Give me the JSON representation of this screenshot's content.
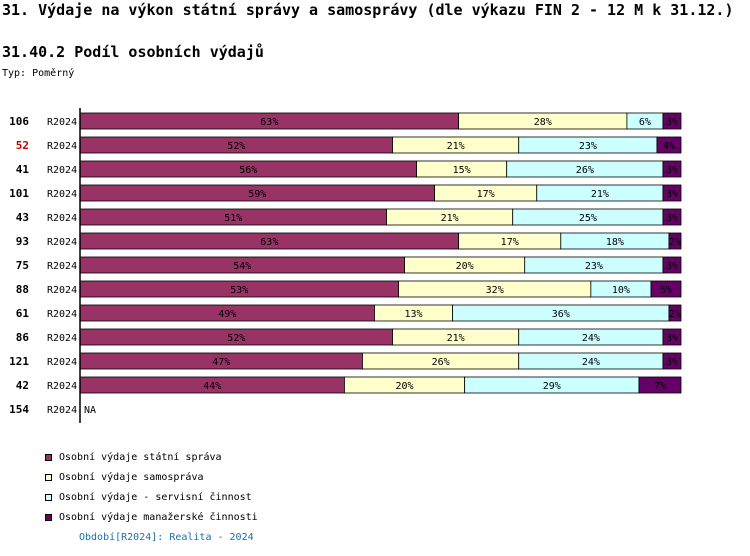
{
  "header": {
    "title": "31. Výdaje na výkon státní správy a samosprávy (dle výkazu FIN 2 - 12 M k 31.12.)",
    "subtitle": "31.40.2 Podíl osobních výdajů",
    "typ_label": "Typ:",
    "typ_value": "Poměrný"
  },
  "footer": {
    "period_label": "Období[R2024]:",
    "period_value": "Realita - 2024"
  },
  "colors": {
    "statni": "#993366",
    "samosprava": "#ffffcc",
    "servisni": "#ccffff",
    "manazerske": "#660066",
    "highlight_id": "#cc0000"
  },
  "chart_data": {
    "type": "bar",
    "orientation": "horizontal",
    "stacked": "percent",
    "title": "31.40.2 Podíl osobních výdajů",
    "series": [
      {
        "name": "Osobní výdaje státní správa",
        "color": "#993366"
      },
      {
        "name": "Osobní výdaje samospráva",
        "color": "#ffffcc"
      },
      {
        "name": "Osobní výdaje - servisní činnost",
        "color": "#ccffff"
      },
      {
        "name": "Osobní výdaje manažerské činnosti",
        "color": "#660066"
      }
    ],
    "rows": [
      {
        "id": "106",
        "period": "R2024",
        "values": [
          63,
          28,
          6,
          3
        ],
        "labels": [
          "63%",
          "28%",
          "6%",
          "3%"
        ],
        "highlight": false
      },
      {
        "id": "52",
        "period": "R2024",
        "values": [
          52,
          21,
          23,
          4
        ],
        "labels": [
          "52%",
          "21%",
          "23%",
          "4%"
        ],
        "highlight": true
      },
      {
        "id": "41",
        "period": "R2024",
        "values": [
          56,
          15,
          26,
          3
        ],
        "labels": [
          "56%",
          "15%",
          "26%",
          "3%"
        ],
        "highlight": false
      },
      {
        "id": "101",
        "period": "R2024",
        "values": [
          59,
          17,
          21,
          3
        ],
        "labels": [
          "59%",
          "17%",
          "21%",
          "3%"
        ],
        "highlight": false
      },
      {
        "id": "43",
        "period": "R2024",
        "values": [
          51,
          21,
          25,
          3
        ],
        "labels": [
          "51%",
          "21%",
          "25%",
          "3%"
        ],
        "highlight": false
      },
      {
        "id": "93",
        "period": "R2024",
        "values": [
          63,
          17,
          18,
          2
        ],
        "labels": [
          "63%",
          "17%",
          "18%",
          "2%"
        ],
        "highlight": false
      },
      {
        "id": "75",
        "period": "R2024",
        "values": [
          54,
          20,
          23,
          3
        ],
        "labels": [
          "54%",
          "20%",
          "23%",
          "3%"
        ],
        "highlight": false
      },
      {
        "id": "88",
        "period": "R2024",
        "values": [
          53,
          32,
          10,
          5
        ],
        "labels": [
          "53%",
          "32%",
          "10%",
          "5%"
        ],
        "highlight": false
      },
      {
        "id": "61",
        "period": "R2024",
        "values": [
          49,
          13,
          36,
          2
        ],
        "labels": [
          "49%",
          "13%",
          "36%",
          "2%"
        ],
        "highlight": false
      },
      {
        "id": "86",
        "period": "R2024",
        "values": [
          52,
          21,
          24,
          3
        ],
        "labels": [
          "52%",
          "21%",
          "24%",
          "3%"
        ],
        "highlight": false
      },
      {
        "id": "121",
        "period": "R2024",
        "values": [
          47,
          26,
          24,
          3
        ],
        "labels": [
          "47%",
          "26%",
          "24%",
          "3%"
        ],
        "highlight": false
      },
      {
        "id": "42",
        "period": "R2024",
        "values": [
          44,
          20,
          29,
          7
        ],
        "labels": [
          "44%",
          "20%",
          "29%",
          "7%"
        ],
        "highlight": false
      },
      {
        "id": "154",
        "period": "R2024",
        "values": null,
        "labels": null,
        "na_label": "NA",
        "highlight": false
      }
    ],
    "xlim": [
      0,
      100
    ]
  }
}
